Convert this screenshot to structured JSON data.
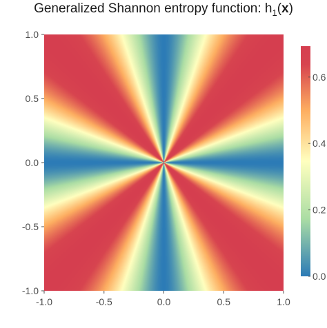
{
  "chart_data": {
    "type": "heatmap",
    "title_prefix": "Generalized Shannon entropy function: h",
    "title_subscript": "1",
    "title_open": "(",
    "title_bold": "x",
    "title_close": ")",
    "xlabel": "",
    "ylabel": "",
    "xlim": [
      -1.0,
      1.0
    ],
    "ylim": [
      -1.0,
      1.0
    ],
    "x_ticks": [
      {
        "value": -1.0,
        "label": "-1.0"
      },
      {
        "value": -0.5,
        "label": "-0.5"
      },
      {
        "value": 0.0,
        "label": "0.0"
      },
      {
        "value": 0.5,
        "label": "0.5"
      },
      {
        "value": 1.0,
        "label": "1.0"
      }
    ],
    "y_ticks": [
      {
        "value": -1.0,
        "label": "-1.0"
      },
      {
        "value": -0.5,
        "label": "-0.5"
      },
      {
        "value": 0.0,
        "label": "0.0"
      },
      {
        "value": 0.5,
        "label": "0.5"
      },
      {
        "value": 1.0,
        "label": "1.0"
      }
    ],
    "colorbar": {
      "range": [
        0.0,
        0.693
      ],
      "ticks": [
        {
          "value": 0.0,
          "label": "0.0"
        },
        {
          "value": 0.2,
          "label": "0.2"
        },
        {
          "value": 0.4,
          "label": "0.4"
        },
        {
          "value": 0.6,
          "label": "0.6"
        }
      ],
      "colormap": [
        "#2c7bb6",
        "#abdda4",
        "#ffffbf",
        "#fdae61",
        "#d7444f",
        "#d53e4f"
      ]
    },
    "grid": false
  }
}
